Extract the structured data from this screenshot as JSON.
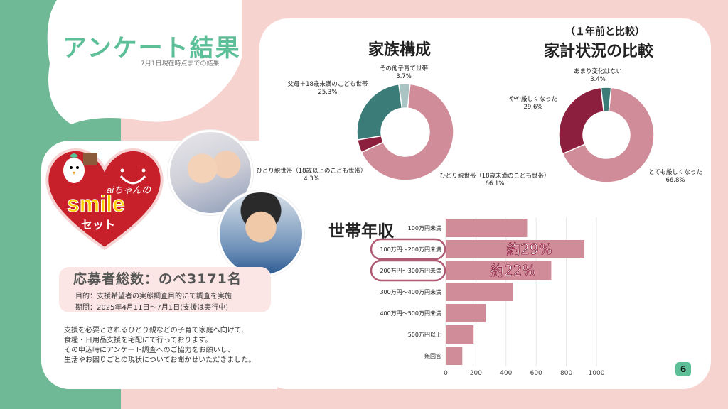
{
  "header": {
    "title": "アンケート結果",
    "subtitle": "7月1日現在時点までの結果"
  },
  "logo": {
    "brand_top": "aiちゃんの",
    "brand_main": "smile",
    "brand_bottom": "セット"
  },
  "stats": {
    "applicants": "応募者総数：のべ3171名",
    "purpose": "目的：支援希望者の実態調査目的にて調査を実施",
    "period": "期間：2025年4月11日～7月1日(支援は実行中)"
  },
  "description": {
    "lines": [
      "支援を必要とされるひとり親などの子育て家庭へ向けて、",
      "食糧・日用品支援を宅配にて行っております。",
      "その申込時にアンケート調査へのご協力をお願いし、",
      "生活やお困りごとの現状についてお聞かせいただきました。"
    ]
  },
  "page_number": "6",
  "colors": {
    "green": "#5cbf98",
    "pink": "#d08c98",
    "teal": "#3b7b78",
    "maroon": "#8d1f3e",
    "light_teal": "#a9c4c2",
    "highlight": "#b05a73"
  },
  "chart_data": [
    {
      "type": "pie",
      "title": "家族構成",
      "labels": [
        "ひとり親世帯（18歳未満のこども世帯）",
        "ひとり親世帯（18歳以上のこども世帯）",
        "父母＋18歳未満のこども世帯",
        "その他子育て世帯"
      ],
      "values": [
        66.1,
        4.3,
        25.3,
        3.7
      ],
      "value_labels": [
        "66.1%",
        "4.3%",
        "25.3%",
        "3.7%"
      ],
      "colors": [
        "#d08c98",
        "#8d1f3e",
        "#3b7b78",
        "#a9c4c2"
      ]
    },
    {
      "type": "pie",
      "title_small": "（１年前と比較）",
      "title": "家計状況の比較",
      "labels": [
        "とても厳しくなった",
        "やや厳しくなった",
        "あまり変化はない"
      ],
      "values": [
        66.8,
        29.6,
        3.4
      ],
      "value_labels": [
        "66.8%",
        "29.6%",
        "3.4%"
      ],
      "colors": [
        "#d08c98",
        "#8d1f3e",
        "#3b7b78"
      ]
    },
    {
      "type": "bar",
      "orientation": "horizontal",
      "title": "世帯年収",
      "categories": [
        "100万円未満",
        "100万円～200万円未満",
        "200万円～300万円未満",
        "300万円～400万円未満",
        "400万円～500万円未満",
        "500万円以上",
        "無回答"
      ],
      "values": [
        540,
        920,
        700,
        445,
        265,
        185,
        110
      ],
      "xlim": [
        0,
        1000
      ],
      "xticks": [
        "0",
        "200",
        "400",
        "600",
        "800",
        "1000"
      ],
      "annotations": [
        "約29%",
        "約22%"
      ],
      "grid": true
    }
  ]
}
